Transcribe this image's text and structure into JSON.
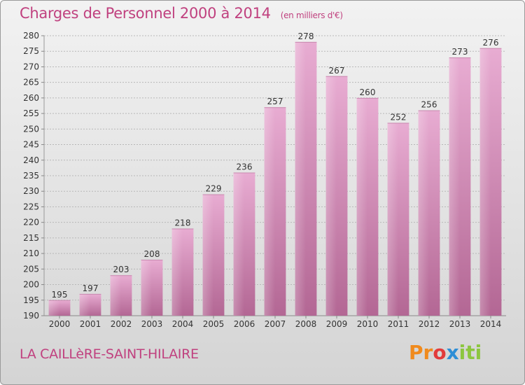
{
  "header": {
    "title": "Charges de Personnel 2000 à 2014",
    "subtitle": "(en milliers d'€)"
  },
  "footer": {
    "commune": "LA CAILLèRE-SAINT-HILAIRE",
    "logo_text": [
      "Pr",
      "o",
      "x",
      "iti"
    ]
  },
  "colors": {
    "accent": "#c0417f",
    "bar_light": "#e8a8d0",
    "bar_dark": "#b86a98",
    "grid": "#b0b0b0"
  },
  "chart_data": {
    "type": "bar",
    "title": "Charges de Personnel 2000 à 2014",
    "subtitle": "(en milliers d'€)",
    "categories": [
      "2000",
      "2001",
      "2002",
      "2003",
      "2004",
      "2005",
      "2006",
      "2007",
      "2008",
      "2009",
      "2010",
      "2011",
      "2012",
      "2013",
      "2014"
    ],
    "values": [
      195,
      197,
      203,
      208,
      218,
      229,
      236,
      257,
      278,
      267,
      260,
      252,
      256,
      273,
      276
    ],
    "ylim": [
      190,
      280
    ],
    "yticks": [
      190,
      195,
      200,
      205,
      210,
      215,
      220,
      225,
      230,
      235,
      240,
      245,
      250,
      255,
      260,
      265,
      270,
      275,
      280
    ],
    "grid": true,
    "xlabel": "",
    "ylabel": ""
  }
}
